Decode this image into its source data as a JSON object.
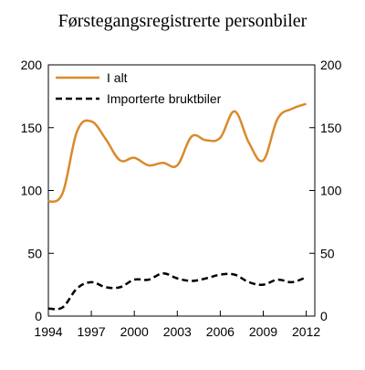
{
  "chart_data": {
    "type": "line",
    "title": "Førstegangsregistrerte personbiler",
    "xlabel": "",
    "ylabel": "",
    "x": [
      1994,
      1995,
      1996,
      1997,
      1998,
      1999,
      2000,
      2001,
      2002,
      2003,
      2004,
      2005,
      2006,
      2007,
      2008,
      2009,
      2010,
      2011,
      2012
    ],
    "xticks": [
      "1994",
      "1997",
      "2000",
      "2003",
      "2006",
      "2009",
      "2012"
    ],
    "yticks": [
      "0",
      "50",
      "100",
      "150",
      "200"
    ],
    "ylim": [
      0,
      200
    ],
    "xlim": [
      1994,
      2012.6
    ],
    "grid": false,
    "legend_position": "top-left",
    "series": [
      {
        "name": "I alt",
        "color": "#d98a2c",
        "style": "solid",
        "values": [
          91,
          98,
          147,
          155,
          141,
          124,
          126,
          120,
          122,
          120,
          143,
          140,
          142,
          163,
          138,
          124,
          157,
          165,
          169
        ]
      },
      {
        "name": "Importerte bruktbiler",
        "color": "#000000",
        "style": "dashed",
        "values": [
          6,
          7,
          22,
          27,
          23,
          23,
          29,
          29,
          34,
          30,
          28,
          30,
          33,
          33,
          27,
          25,
          29,
          27,
          31
        ]
      }
    ]
  }
}
